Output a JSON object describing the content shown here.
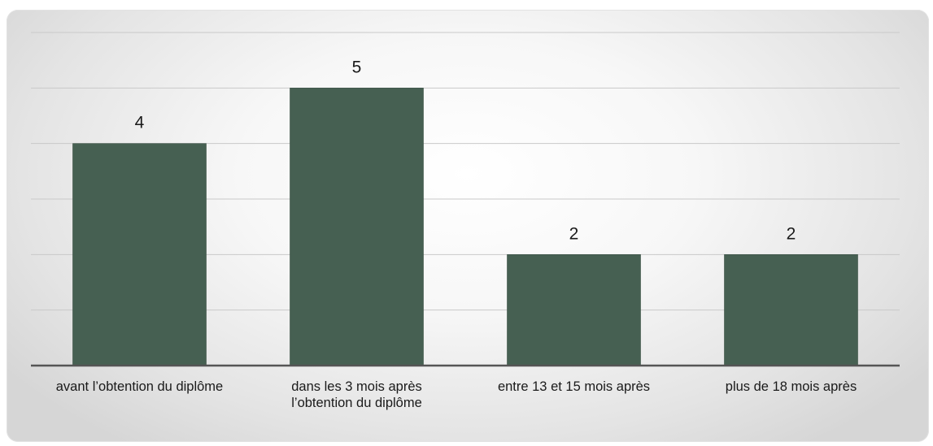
{
  "chart_data": {
    "type": "bar",
    "categories": [
      [
        "avant l’obtention du diplôme"
      ],
      [
        "dans les 3 mois après",
        "l’obtention du diplôme"
      ],
      [
        "entre 13 et 15 mois après"
      ],
      [
        "plus de 18 mois après"
      ]
    ],
    "values": [
      4,
      5,
      2,
      2
    ],
    "data_labels": [
      "4",
      "5",
      "2",
      "2"
    ],
    "ylim": [
      0,
      6
    ],
    "grid": true,
    "legend": "none",
    "title": "",
    "xlabel": "",
    "ylabel": "",
    "colors": {
      "bar": "#466052",
      "bar_edge": "#3a5044",
      "grid": "#c9c9c9",
      "axis": "#555555",
      "text": "#1a1a1a"
    }
  }
}
